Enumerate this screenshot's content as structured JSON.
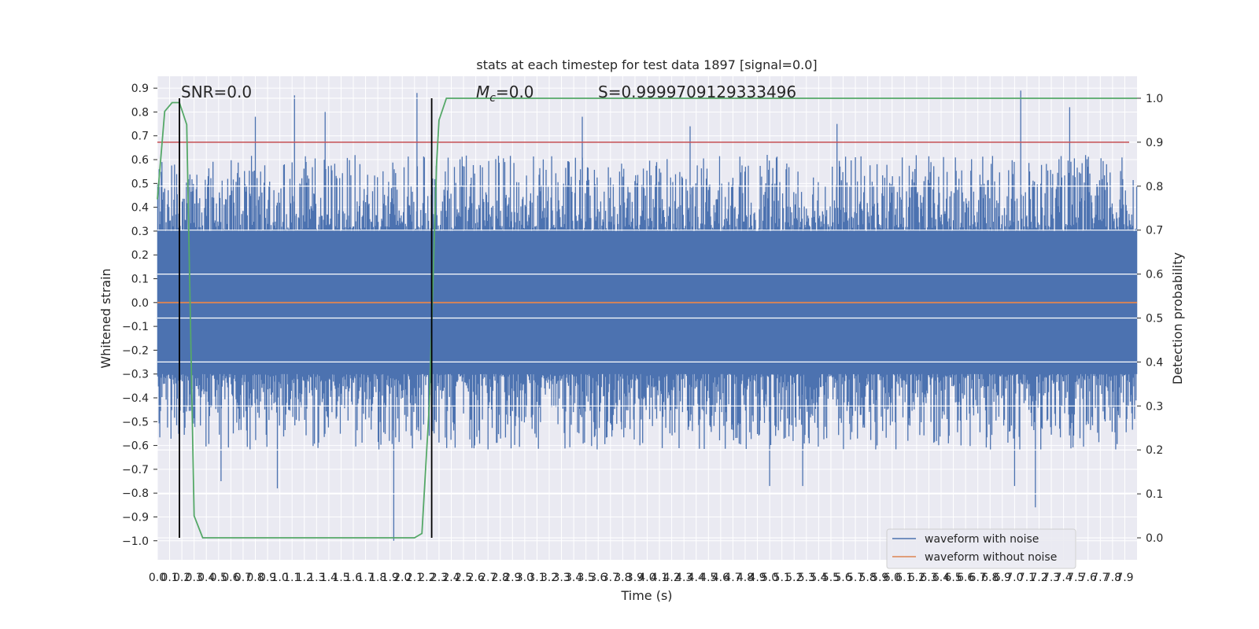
{
  "chart_data": {
    "type": "line",
    "title": "stats at each timestep for test data 1897 [signal=0.0]",
    "xlabel": "Time (s)",
    "ylabel": "Whitened strain",
    "ylabel_right": "Detection probability",
    "xlim": [
      0.0,
      8.0
    ],
    "ylim": [
      -1.08,
      0.95
    ],
    "ylim_right": [
      -0.05,
      1.05
    ],
    "x_tick_step": 0.1,
    "x_tick_max": 7.9,
    "y_ticks": [
      0.9,
      0.8,
      0.7,
      0.6,
      0.5,
      0.4,
      0.3,
      0.2,
      0.1,
      0.0,
      -0.1,
      -0.2,
      -0.3,
      -0.4,
      -0.5,
      -0.6,
      -0.7,
      -0.8,
      -0.9,
      -1.0
    ],
    "y_ticks_right": [
      1.0,
      0.9,
      0.8,
      0.7,
      0.6,
      0.5,
      0.4,
      0.3,
      0.2,
      0.1,
      0.0
    ],
    "grid": true,
    "legend_position": "bottom-right",
    "annotations": {
      "snr": "SNR=0.0",
      "mc_prefix": "M",
      "mc_sub": "c",
      "mc_value": "=0.0",
      "s": "S=0.9999709129333496"
    },
    "threshold_right": 0.9,
    "vertical_markers_x": [
      0.18,
      2.24
    ],
    "series": [
      {
        "name": "waveform with noise",
        "color": "#4c72b0",
        "kind": "noise",
        "core_amplitude": 0.3,
        "typical_extreme": 0.5,
        "notable_peaks": [
          {
            "x": 1.12,
            "y": 0.87
          },
          {
            "x": 2.12,
            "y": 0.88
          },
          {
            "x": 7.05,
            "y": 0.89
          },
          {
            "x": 1.37,
            "y": 0.8
          },
          {
            "x": 3.47,
            "y": 0.78
          },
          {
            "x": 7.45,
            "y": 0.82
          },
          {
            "x": 0.8,
            "y": 0.78
          },
          {
            "x": 4.35,
            "y": 0.74
          },
          {
            "x": 5.55,
            "y": 0.75
          },
          {
            "x": 1.93,
            "y": -1.0
          },
          {
            "x": 7.17,
            "y": -0.86
          },
          {
            "x": 0.98,
            "y": -0.78
          },
          {
            "x": 5.0,
            "y": -0.77
          },
          {
            "x": 5.27,
            "y": -0.77
          },
          {
            "x": 0.52,
            "y": -0.75
          },
          {
            "x": 7.0,
            "y": -0.77
          }
        ]
      },
      {
        "name": "waveform without noise",
        "color": "#dd8452",
        "kind": "flat",
        "value": 0.0
      },
      {
        "name": "Detection probability",
        "color": "#55a868",
        "axis": "right",
        "x": [
          0.0,
          0.06,
          0.12,
          0.18,
          0.24,
          0.3,
          0.37,
          0.5,
          1.0,
          1.5,
          2.0,
          2.1,
          2.16,
          2.22,
          2.28,
          2.3,
          2.36,
          8.0
        ],
        "values": [
          0.77,
          0.97,
          0.99,
          0.99,
          0.94,
          0.05,
          0.0,
          0.0,
          0.0,
          0.0,
          0.0,
          0.0,
          0.01,
          0.3,
          0.85,
          0.95,
          1.0,
          1.0
        ]
      },
      {
        "name": "Threshold",
        "color": "#c44e52",
        "axis": "right",
        "x": [
          0.0,
          8.0
        ],
        "values": [
          0.9,
          0.9
        ]
      }
    ]
  }
}
